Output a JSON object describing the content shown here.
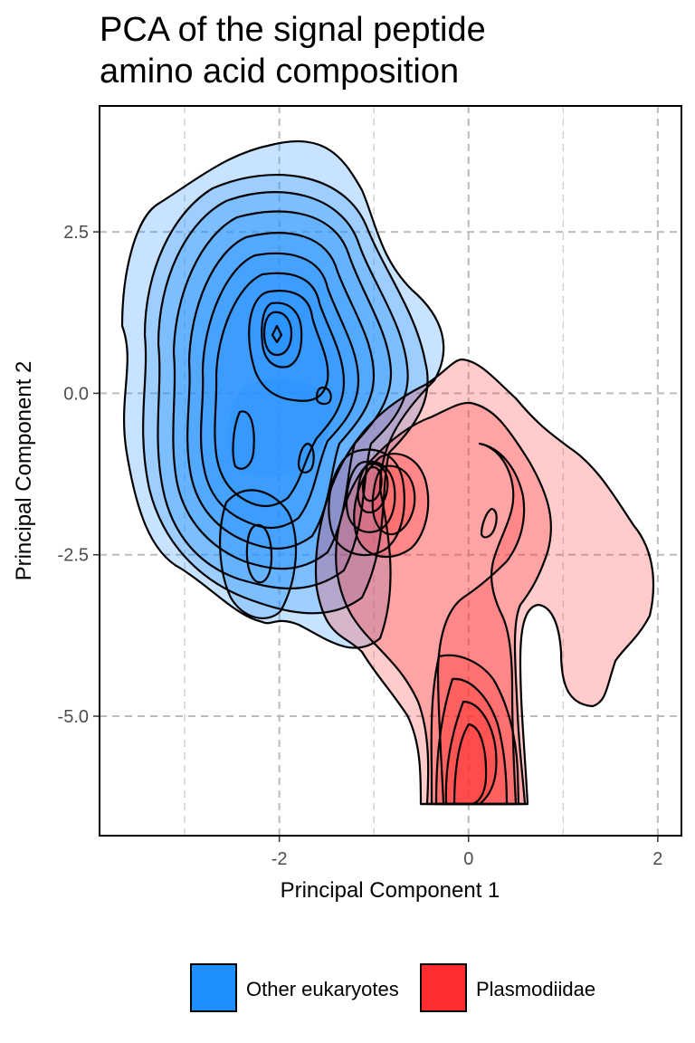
{
  "chart_data": {
    "type": "density-contour",
    "title_lines": [
      "PCA of the signal peptide",
      "amino acid composition"
    ],
    "xlabel": "Principal Component 1",
    "ylabel": "Principal Component 2",
    "xlim": [
      -3.9,
      2.25
    ],
    "ylim": [
      -6.85,
      4.45
    ],
    "xticks": [
      {
        "value": -2,
        "label": "-2"
      },
      {
        "value": 0,
        "label": "0"
      },
      {
        "value": 2,
        "label": "2"
      }
    ],
    "yticks": [
      {
        "value": 2.5,
        "label": "2.5"
      },
      {
        "value": 0.0,
        "label": "0.0"
      },
      {
        "value": -2.5,
        "label": "-2.5"
      },
      {
        "value": -5.0,
        "label": "-5.0"
      }
    ],
    "minor_gridlines": {
      "x": [
        -3,
        -1,
        1
      ],
      "y": []
    },
    "grid": true,
    "legend_position": "bottom",
    "series": [
      {
        "name": "Other eukaryotes",
        "color": "#1E8FFF",
        "modes": [
          {
            "x": -2.05,
            "y": 0.95
          },
          {
            "x": -1.6,
            "y": 0.0
          },
          {
            "x": -2.4,
            "y": -0.6
          },
          {
            "x": -1.75,
            "y": -0.9
          },
          {
            "x": -0.95,
            "y": -1.3
          },
          {
            "x": -2.25,
            "y": -2.4
          }
        ]
      },
      {
        "name": "Plasmodiidae",
        "color": "#FF2E2E",
        "modes": [
          {
            "x": 0.0,
            "y": -5.5
          },
          {
            "x": 0.2,
            "y": -2.0
          },
          {
            "x": -0.8,
            "y": -1.6
          }
        ]
      }
    ]
  }
}
